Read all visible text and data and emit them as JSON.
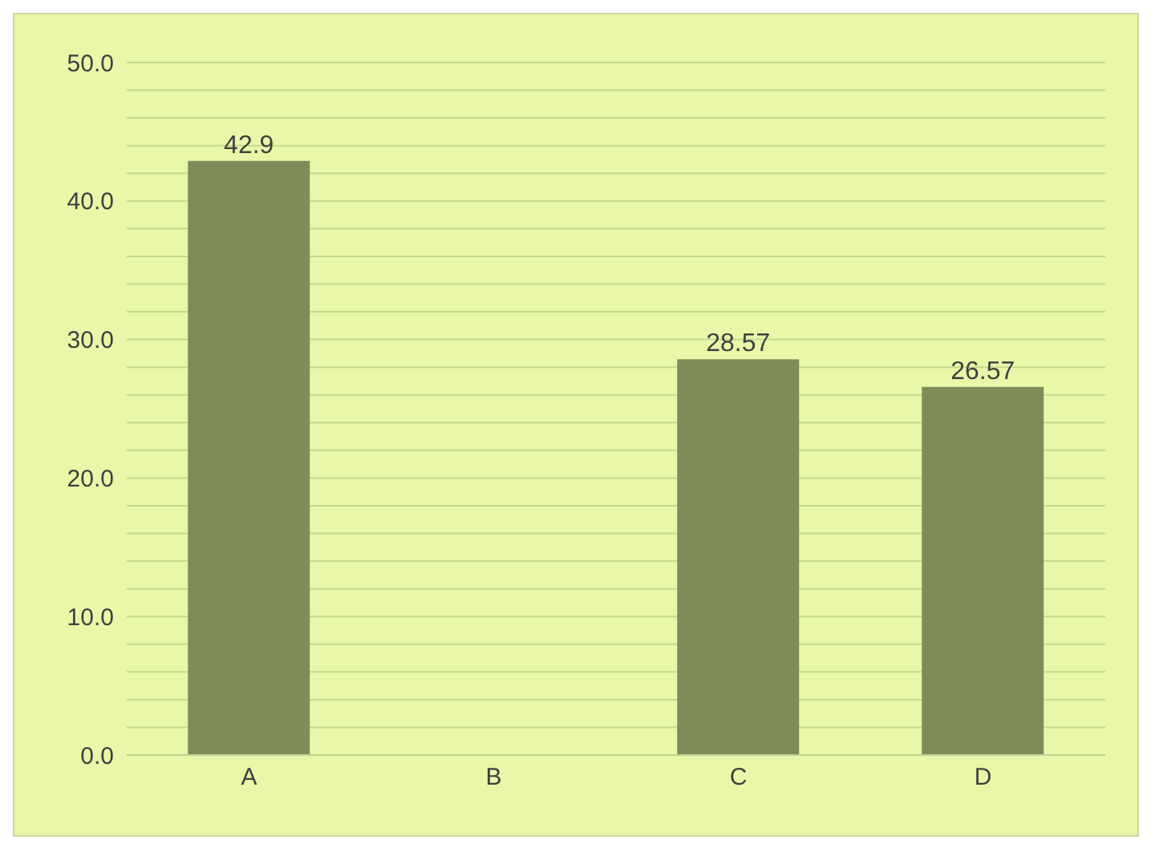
{
  "chart_data": {
    "type": "bar",
    "categories": [
      "A",
      "B",
      "C",
      "D"
    ],
    "values": [
      42.9,
      null,
      28.57,
      26.57
    ],
    "color": "#7f8c5a",
    "data_labels": true,
    "ylim": [
      0,
      50
    ],
    "yticks": [
      {
        "value": 0,
        "label": "0.0"
      },
      {
        "value": 2,
        "label": null
      },
      {
        "value": 4,
        "label": null
      },
      {
        "value": 6,
        "label": null
      },
      {
        "value": 8,
        "label": null
      },
      {
        "value": 10,
        "label": "10.0"
      },
      {
        "value": 12,
        "label": null
      },
      {
        "value": 14,
        "label": null
      },
      {
        "value": 16,
        "label": null
      },
      {
        "value": 18,
        "label": null
      },
      {
        "value": 20,
        "label": "20.0"
      },
      {
        "value": 22,
        "label": null
      },
      {
        "value": 24,
        "label": null
      },
      {
        "value": 26,
        "label": null
      },
      {
        "value": 28,
        "label": null
      },
      {
        "value": 30,
        "label": "30.0"
      },
      {
        "value": 32,
        "label": null
      },
      {
        "value": 34,
        "label": null
      },
      {
        "value": 36,
        "label": null
      },
      {
        "value": 38,
        "label": null
      },
      {
        "value": 40,
        "label": "40.0"
      },
      {
        "value": 42,
        "label": null
      },
      {
        "value": 44,
        "label": null
      },
      {
        "value": 46,
        "label": null
      },
      {
        "value": 48,
        "label": null
      },
      {
        "value": 50,
        "label": "50.0"
      }
    ],
    "grid": "y"
  }
}
